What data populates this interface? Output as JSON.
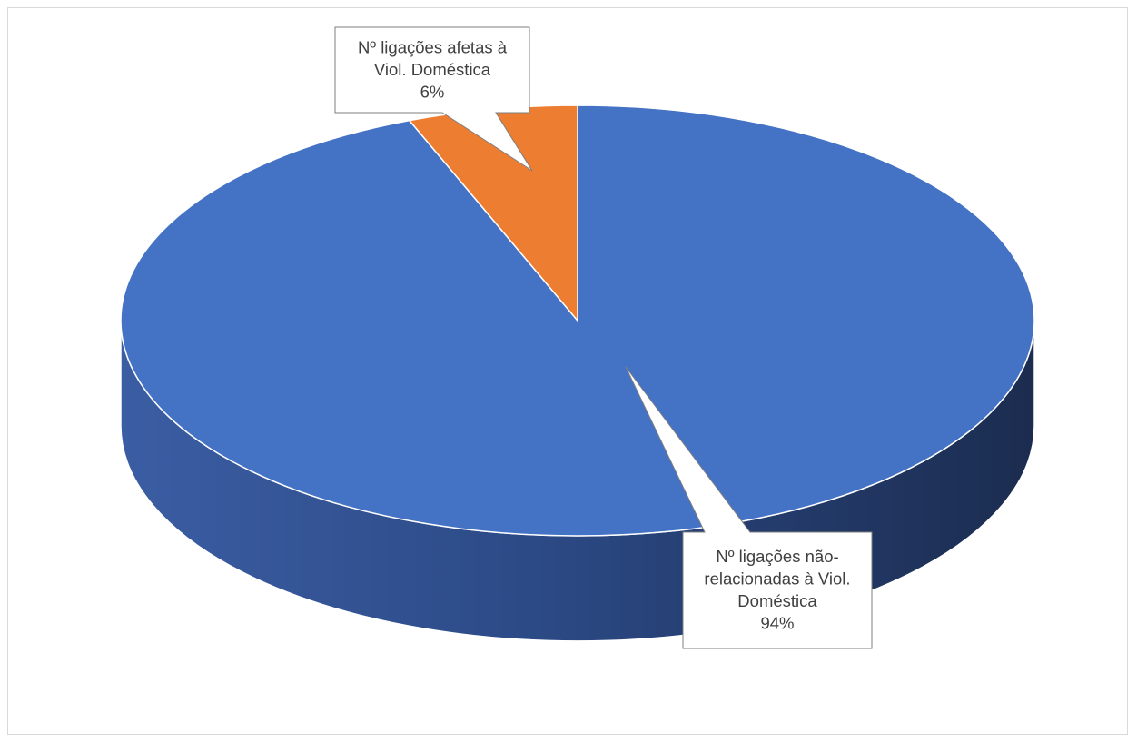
{
  "chart_data": {
    "type": "pie",
    "style": "3d",
    "title": "",
    "legend": "none",
    "slices": [
      {
        "label_lines": [
          "Nº ligações afetas à",
          "Viol. Doméstica"
        ],
        "percent_label": "6%",
        "value": 6,
        "color": "#ED7D31"
      },
      {
        "label_lines": [
          "Nº ligações não-",
          "relacionadas à Viol.",
          "Doméstica"
        ],
        "percent_label": "94%",
        "value": 94,
        "color": "#4472C4"
      }
    ],
    "colors": {
      "side_dark": "#1B2C4F",
      "side_mid": "#2C4A86",
      "side_light": "#3B5DA3",
      "slice_edge": "#ffffff",
      "label_border": "#7f7f7f",
      "label_text": "#404040"
    }
  }
}
